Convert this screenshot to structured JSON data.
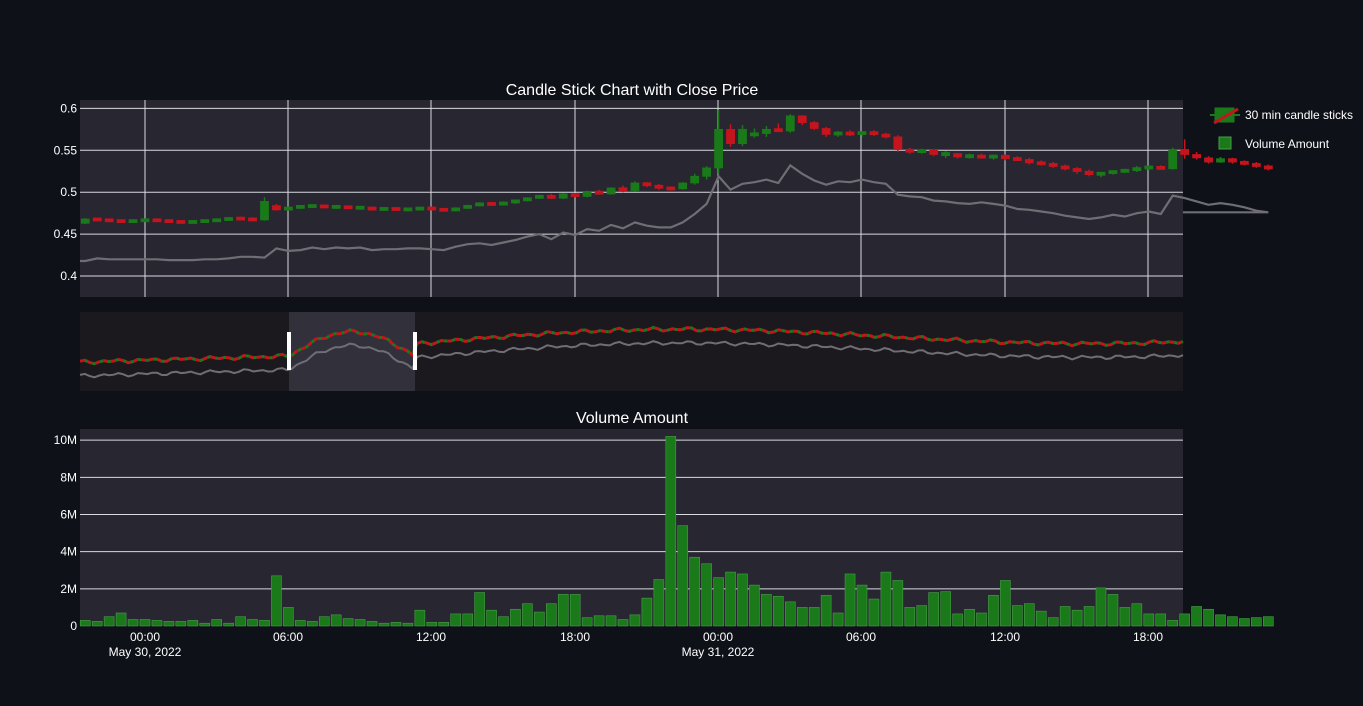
{
  "colors": {
    "background": "#0f1119",
    "plot_bg": "#272631",
    "grid": "#d9d9df",
    "up": "#1a7a1a",
    "down": "#c5141d",
    "close_line": "#6e6e74",
    "text": "#ffffff"
  },
  "chart_data": [
    {
      "type": "candlestick",
      "title": "Candle Stick Chart with Close Price",
      "ylim": [
        0.375,
        0.61
      ],
      "yticks": [
        "0.4",
        "0.45",
        "0.5",
        "0.55",
        "0.6"
      ],
      "x_range": [
        "2022-05-29 21:15",
        "2022-05-31 20:00"
      ],
      "candle_interval_minutes": 30,
      "legend": [
        {
          "name": "30 min candle sticks",
          "symbol": "candle"
        },
        {
          "name": "Volume Amount",
          "symbol": "bar"
        }
      ],
      "legend_position": "top-right",
      "ohlc": [
        [
          0.463,
          0.469,
          0.462,
          0.468
        ],
        [
          0.468,
          0.469,
          0.466,
          0.467
        ],
        [
          0.467,
          0.468,
          0.466,
          0.466
        ],
        [
          0.466,
          0.467,
          0.465,
          0.465
        ],
        [
          0.465,
          0.467,
          0.464,
          0.466
        ],
        [
          0.466,
          0.468,
          0.465,
          0.467
        ],
        [
          0.467,
          0.468,
          0.466,
          0.466
        ],
        [
          0.466,
          0.467,
          0.464,
          0.465
        ],
        [
          0.465,
          0.466,
          0.463,
          0.464
        ],
        [
          0.464,
          0.466,
          0.463,
          0.465
        ],
        [
          0.465,
          0.467,
          0.464,
          0.466
        ],
        [
          0.466,
          0.468,
          0.465,
          0.467
        ],
        [
          0.467,
          0.47,
          0.466,
          0.469
        ],
        [
          0.469,
          0.471,
          0.467,
          0.468
        ],
        [
          0.468,
          0.47,
          0.466,
          0.467
        ],
        [
          0.467,
          0.494,
          0.466,
          0.489
        ],
        [
          0.484,
          0.486,
          0.478,
          0.479
        ],
        [
          0.479,
          0.483,
          0.478,
          0.482
        ],
        [
          0.482,
          0.484,
          0.48,
          0.483
        ],
        [
          0.483,
          0.485,
          0.481,
          0.484
        ],
        [
          0.484,
          0.485,
          0.481,
          0.482
        ],
        [
          0.482,
          0.484,
          0.48,
          0.483
        ],
        [
          0.483,
          0.484,
          0.48,
          0.481
        ],
        [
          0.481,
          0.483,
          0.479,
          0.482
        ],
        [
          0.482,
          0.483,
          0.478,
          0.479
        ],
        [
          0.479,
          0.482,
          0.478,
          0.481
        ],
        [
          0.481,
          0.482,
          0.478,
          0.479
        ],
        [
          0.479,
          0.481,
          0.477,
          0.48
        ],
        [
          0.48,
          0.482,
          0.478,
          0.481
        ],
        [
          0.481,
          0.483,
          0.479,
          0.48
        ],
        [
          0.48,
          0.481,
          0.477,
          0.478
        ],
        [
          0.478,
          0.482,
          0.477,
          0.481
        ],
        [
          0.481,
          0.485,
          0.48,
          0.484
        ],
        [
          0.484,
          0.488,
          0.483,
          0.487
        ],
        [
          0.487,
          0.488,
          0.484,
          0.485
        ],
        [
          0.485,
          0.489,
          0.484,
          0.488
        ],
        [
          0.488,
          0.491,
          0.486,
          0.49
        ],
        [
          0.49,
          0.494,
          0.489,
          0.493
        ],
        [
          0.493,
          0.497,
          0.492,
          0.496
        ],
        [
          0.496,
          0.498,
          0.492,
          0.493
        ],
        [
          0.493,
          0.499,
          0.492,
          0.498
        ],
        [
          0.498,
          0.499,
          0.494,
          0.495
        ],
        [
          0.495,
          0.502,
          0.494,
          0.501
        ],
        [
          0.501,
          0.503,
          0.497,
          0.498
        ],
        [
          0.498,
          0.506,
          0.497,
          0.505
        ],
        [
          0.505,
          0.508,
          0.5,
          0.502
        ],
        [
          0.502,
          0.513,
          0.501,
          0.511
        ],
        [
          0.511,
          0.512,
          0.506,
          0.508
        ],
        [
          0.508,
          0.51,
          0.503,
          0.505
        ],
        [
          0.505,
          0.507,
          0.502,
          0.504
        ],
        [
          0.504,
          0.512,
          0.503,
          0.511
        ],
        [
          0.511,
          0.522,
          0.509,
          0.519
        ],
        [
          0.519,
          0.531,
          0.515,
          0.529
        ],
        [
          0.529,
          0.598,
          0.522,
          0.575
        ],
        [
          0.575,
          0.581,
          0.554,
          0.558
        ],
        [
          0.558,
          0.58,
          0.555,
          0.575
        ],
        [
          0.568,
          0.576,
          0.565,
          0.57
        ],
        [
          0.57,
          0.579,
          0.566,
          0.575
        ],
        [
          0.575,
          0.582,
          0.572,
          0.573
        ],
        [
          0.573,
          0.593,
          0.571,
          0.591
        ],
        [
          0.591,
          0.592,
          0.58,
          0.583
        ],
        [
          0.583,
          0.585,
          0.574,
          0.576
        ],
        [
          0.576,
          0.578,
          0.566,
          0.569
        ],
        [
          0.569,
          0.573,
          0.566,
          0.571
        ],
        [
          0.571,
          0.574,
          0.567,
          0.569
        ],
        [
          0.569,
          0.573,
          0.566,
          0.572
        ],
        [
          0.572,
          0.574,
          0.567,
          0.569
        ],
        [
          0.569,
          0.571,
          0.564,
          0.566
        ],
        [
          0.566,
          0.568,
          0.548,
          0.551
        ],
        [
          0.551,
          0.553,
          0.546,
          0.548
        ],
        [
          0.548,
          0.552,
          0.546,
          0.55
        ],
        [
          0.55,
          0.551,
          0.543,
          0.545
        ],
        [
          0.545,
          0.549,
          0.541,
          0.546
        ],
        [
          0.546,
          0.547,
          0.54,
          0.542
        ],
        [
          0.542,
          0.546,
          0.54,
          0.544
        ],
        [
          0.544,
          0.546,
          0.54,
          0.541
        ],
        [
          0.541,
          0.545,
          0.539,
          0.544
        ],
        [
          0.544,
          0.545,
          0.538,
          0.54
        ],
        [
          0.54,
          0.543,
          0.537,
          0.539
        ],
        [
          0.539,
          0.541,
          0.533,
          0.535
        ],
        [
          0.535,
          0.538,
          0.532,
          0.534
        ],
        [
          0.534,
          0.536,
          0.529,
          0.531
        ],
        [
          0.531,
          0.533,
          0.526,
          0.528
        ],
        [
          0.528,
          0.53,
          0.522,
          0.525
        ],
        [
          0.525,
          0.527,
          0.519,
          0.521
        ],
        [
          0.521,
          0.524,
          0.518,
          0.523
        ],
        [
          0.523,
          0.526,
          0.521,
          0.525
        ],
        [
          0.525,
          0.528,
          0.523,
          0.526
        ],
        [
          0.526,
          0.531,
          0.524,
          0.529
        ],
        [
          0.529,
          0.531,
          0.526,
          0.53
        ],
        [
          0.53,
          0.532,
          0.527,
          0.528
        ],
        [
          0.528,
          0.553,
          0.527,
          0.551
        ],
        [
          0.551,
          0.563,
          0.54,
          0.545
        ],
        [
          0.545,
          0.548,
          0.539,
          0.541
        ],
        [
          0.541,
          0.543,
          0.534,
          0.536
        ],
        [
          0.536,
          0.542,
          0.535,
          0.54
        ],
        [
          0.54,
          0.541,
          0.534,
          0.536
        ],
        [
          0.536,
          0.538,
          0.532,
          0.534
        ],
        [
          0.534,
          0.536,
          0.529,
          0.531
        ],
        [
          0.531,
          0.533,
          0.526,
          0.528
        ]
      ],
      "close_price": [
        0.418,
        0.421,
        0.42,
        0.42,
        0.42,
        0.42,
        0.42,
        0.419,
        0.419,
        0.419,
        0.42,
        0.42,
        0.421,
        0.423,
        0.423,
        0.422,
        0.433,
        0.43,
        0.431,
        0.434,
        0.432,
        0.434,
        0.433,
        0.434,
        0.431,
        0.432,
        0.432,
        0.433,
        0.433,
        0.432,
        0.431,
        0.435,
        0.438,
        0.439,
        0.437,
        0.44,
        0.443,
        0.447,
        0.45,
        0.444,
        0.452,
        0.449,
        0.456,
        0.454,
        0.461,
        0.457,
        0.464,
        0.46,
        0.458,
        0.458,
        0.464,
        0.474,
        0.486,
        0.519,
        0.503,
        0.51,
        0.512,
        0.515,
        0.511,
        0.532,
        0.522,
        0.514,
        0.509,
        0.513,
        0.512,
        0.515,
        0.512,
        0.51,
        0.497,
        0.495,
        0.494,
        0.49,
        0.489,
        0.487,
        0.486,
        0.488,
        0.486,
        0.484,
        0.48,
        0.479,
        0.477,
        0.475,
        0.472,
        0.47,
        0.468,
        0.47,
        0.473,
        0.471,
        0.475,
        0.477,
        0.474,
        0.496,
        0.493,
        0.489,
        0.485,
        0.487,
        0.485,
        0.482,
        0.478,
        0.476
      ],
      "x_ticks": [
        "00:00\nMay 30, 2022",
        "06:00",
        "12:00",
        "18:00",
        "00:00\nMay 31, 2022",
        "06:00",
        "12:00",
        "18:00"
      ]
    },
    {
      "type": "range_slider",
      "selected_window": "data-shown-above"
    },
    {
      "type": "bar",
      "title": "Volume Amount",
      "ylim": [
        0,
        10.6
      ],
      "yticks": [
        "0",
        "2M",
        "4M",
        "6M",
        "8M",
        "10M"
      ],
      "volume_millions": [
        0.3,
        0.25,
        0.5,
        0.7,
        0.35,
        0.35,
        0.3,
        0.25,
        0.25,
        0.3,
        0.15,
        0.35,
        0.15,
        0.5,
        0.35,
        0.3,
        2.7,
        1.0,
        0.3,
        0.25,
        0.5,
        0.6,
        0.4,
        0.35,
        0.25,
        0.15,
        0.2,
        0.15,
        0.85,
        0.2,
        0.2,
        0.65,
        0.65,
        1.8,
        0.85,
        0.5,
        0.9,
        1.2,
        0.75,
        1.2,
        1.7,
        1.7,
        0.45,
        0.55,
        0.55,
        0.35,
        0.6,
        1.5,
        2.5,
        10.2,
        5.4,
        3.7,
        3.35,
        2.6,
        2.9,
        2.8,
        2.2,
        1.7,
        1.6,
        1.3,
        1.0,
        1.0,
        1.65,
        0.7,
        2.8,
        2.2,
        1.45,
        2.9,
        2.45,
        1.0,
        1.1,
        1.8,
        1.85,
        0.65,
        0.9,
        0.7,
        1.65,
        2.45,
        1.1,
        1.2,
        0.8,
        0.45,
        1.05,
        0.85,
        1.05,
        2.05,
        1.7,
        1.0,
        1.2,
        0.65,
        0.65,
        0.3,
        0.65,
        1.05,
        0.9,
        0.6,
        0.5,
        0.4,
        0.45,
        0.5
      ]
    }
  ]
}
